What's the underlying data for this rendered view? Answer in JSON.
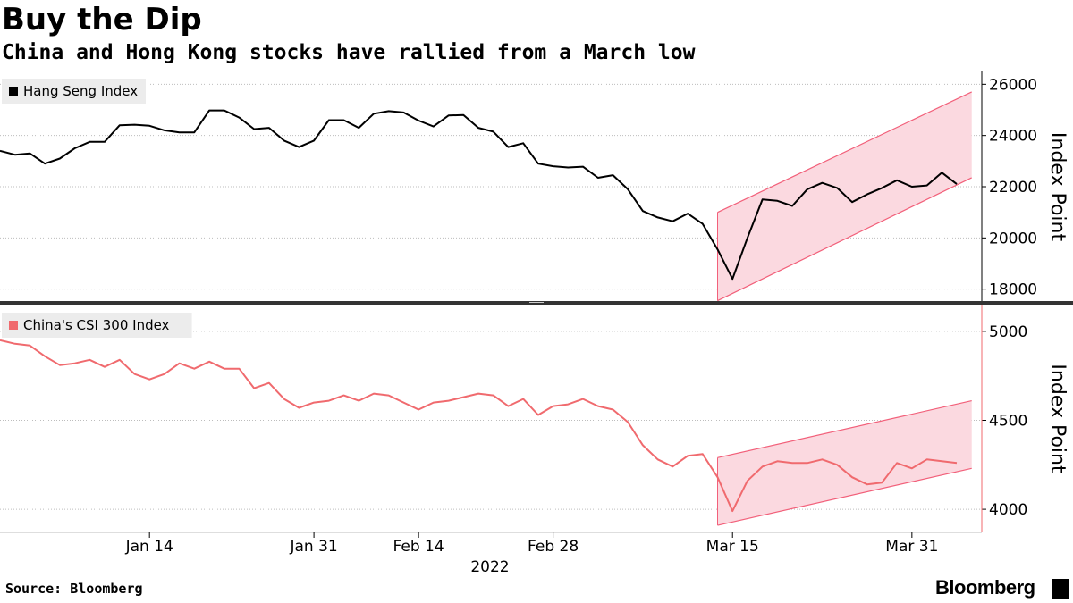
{
  "header": {
    "title": "Buy the Dip",
    "subtitle": "China and Hong Kong stocks have rallied from a March low"
  },
  "footer": {
    "source": "Source: Bloomberg",
    "brand": "Bloomberg"
  },
  "x_axis": {
    "ticks": [
      "Jan 14",
      "Jan 31",
      "Feb 14",
      "Feb 28",
      "Mar 15",
      "Mar 31"
    ],
    "year_label": "2022"
  },
  "chart_data": [
    {
      "type": "line",
      "legend": "Hang Seng Index",
      "line_color": "#000000",
      "band_color": "#fbd9e0",
      "band_edge_color": "#f2607a",
      "ylabel": "Index Point",
      "ylim": [
        17500,
        26500
      ],
      "yticks": [
        18000,
        20000,
        22000,
        24000,
        26000
      ],
      "grid": true,
      "legend_position": "top-left",
      "values": [
        23400,
        23250,
        23300,
        22900,
        23100,
        23500,
        23750,
        23750,
        24400,
        24420,
        24380,
        24200,
        24120,
        24120,
        24980,
        24980,
        24700,
        24250,
        24300,
        23800,
        23550,
        23800,
        24600,
        24600,
        24300,
        24850,
        24950,
        24900,
        24580,
        24350,
        24780,
        24800,
        24300,
        24150,
        23550,
        23700,
        22900,
        22800,
        22750,
        22780,
        22350,
        22450,
        21900,
        21050,
        20800,
        20650,
        20950,
        20550,
        19550,
        18400,
        20000,
        21500,
        21450,
        21250,
        21900,
        22150,
        21950,
        21400,
        21700,
        21950,
        22250,
        22000,
        22050,
        22550,
        22100
      ],
      "channel": {
        "start_index": 48,
        "end_index": 65,
        "upper": [
          21000,
          25700
        ],
        "lower": [
          17550,
          22350
        ]
      }
    },
    {
      "type": "line",
      "legend": "China's CSI 300 Index",
      "line_color": "#f06a6e",
      "band_color": "#fbd9e0",
      "band_edge_color": "#f2607a",
      "ylabel": "Index Point",
      "ylim": [
        3870,
        5150
      ],
      "yticks": [
        4000,
        4500,
        5000
      ],
      "grid": true,
      "legend_position": "top-left",
      "values": [
        4950,
        4930,
        4920,
        4860,
        4810,
        4820,
        4840,
        4800,
        4840,
        4760,
        4730,
        4760,
        4820,
        4790,
        4830,
        4790,
        4790,
        4680,
        4710,
        4620,
        4570,
        4600,
        4610,
        4640,
        4610,
        4650,
        4640,
        4600,
        4560,
        4600,
        4610,
        4630,
        4650,
        4640,
        4580,
        4620,
        4530,
        4580,
        4590,
        4620,
        4580,
        4560,
        4490,
        4360,
        4280,
        4240,
        4300,
        4310,
        4180,
        3990,
        4160,
        4240,
        4270,
        4260,
        4260,
        4280,
        4250,
        4180,
        4140,
        4150,
        4260,
        4230,
        4280,
        4270,
        4260
      ],
      "channel": {
        "start_index": 48,
        "end_index": 65,
        "upper": [
          4290,
          4610
        ],
        "lower": [
          3910,
          4230
        ]
      }
    }
  ]
}
